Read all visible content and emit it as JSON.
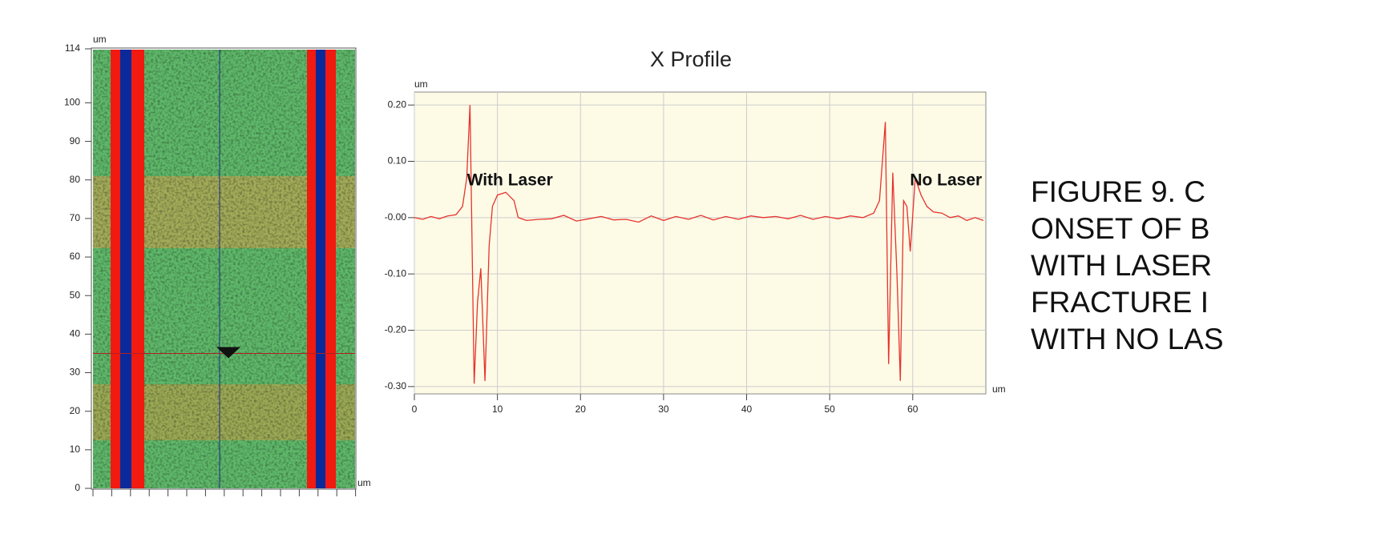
{
  "chart_data": [
    {
      "type": "image",
      "x_unit": "um",
      "y_unit": "um",
      "ylim": [
        0,
        114
      ],
      "yticks": [
        0,
        10,
        20,
        30,
        40,
        50,
        60,
        70,
        80,
        90,
        100,
        114
      ],
      "crosshair_y": 35
    },
    {
      "type": "line",
      "title": "X Profile",
      "x_unit": "um",
      "y_unit": "um",
      "xlim": [
        0,
        68.8
      ],
      "ylim": [
        -0.313,
        0.223
      ],
      "xticks": [
        0,
        10,
        20,
        30,
        40,
        50,
        60
      ],
      "yticks": [
        {
          "value": 0.2,
          "label": "0.20"
        },
        {
          "value": 0.1,
          "label": "0.10"
        },
        {
          "value": 0,
          "label": "-0.00"
        },
        {
          "value": -0.1,
          "label": "-0.10"
        },
        {
          "value": -0.2,
          "label": "-0.20"
        },
        {
          "value": -0.3,
          "label": "-0.30"
        }
      ],
      "grid": true,
      "annotations": [
        {
          "text": "With Laser",
          "x": 11.5,
          "y": 0.065
        },
        {
          "text": "No Laser",
          "x": 64,
          "y": 0.065
        }
      ],
      "series": [
        {
          "color": "#e8322e",
          "x": [
            0,
            1,
            2,
            3,
            4,
            5,
            5.8,
            6.3,
            6.7,
            7.2,
            7.6,
            8.0,
            8.5,
            9.0,
            9.4,
            10,
            11,
            12,
            12.5,
            13.5,
            15,
            16.5,
            18,
            19.5,
            21,
            22.5,
            24,
            25.5,
            27,
            28.5,
            30,
            31.5,
            33,
            34.5,
            36,
            37.5,
            39,
            40.5,
            42,
            43.5,
            45,
            46.5,
            48,
            49.5,
            51,
            52.5,
            54,
            55.3,
            56,
            56.7,
            57.1,
            57.6,
            58.1,
            58.5,
            58.9,
            59.3,
            59.7,
            60.3,
            61.0,
            61.7,
            62.5,
            63.5,
            64.5,
            65.5,
            66.5,
            67.5,
            68.5
          ],
          "values": [
            0.0,
            -0.003,
            0.002,
            -0.002,
            0.003,
            0.005,
            0.02,
            0.07,
            0.2,
            -0.295,
            -0.15,
            -0.09,
            -0.29,
            -0.05,
            0.02,
            0.04,
            0.045,
            0.03,
            0.0,
            -0.005,
            -0.003,
            -0.002,
            0.004,
            -0.006,
            -0.002,
            0.002,
            -0.004,
            -0.003,
            -0.008,
            0.003,
            -0.005,
            0.002,
            -0.003,
            0.004,
            -0.004,
            0.002,
            -0.003,
            0.003,
            0.0,
            0.002,
            -0.002,
            0.004,
            -0.003,
            0.002,
            -0.002,
            0.003,
            0.0,
            0.008,
            0.03,
            0.17,
            -0.26,
            0.08,
            -0.1,
            -0.29,
            0.03,
            0.02,
            -0.06,
            0.07,
            0.04,
            0.02,
            0.01,
            0.008,
            0.0,
            0.003,
            -0.005,
            0.0,
            -0.005
          ]
        }
      ]
    },
    {
      "type": "text",
      "lines": [
        "FIGURE  9. C",
        "ONSET OF B",
        "WITH LASER",
        "FRACTURE I",
        "WITH NO LAS"
      ]
    }
  ]
}
